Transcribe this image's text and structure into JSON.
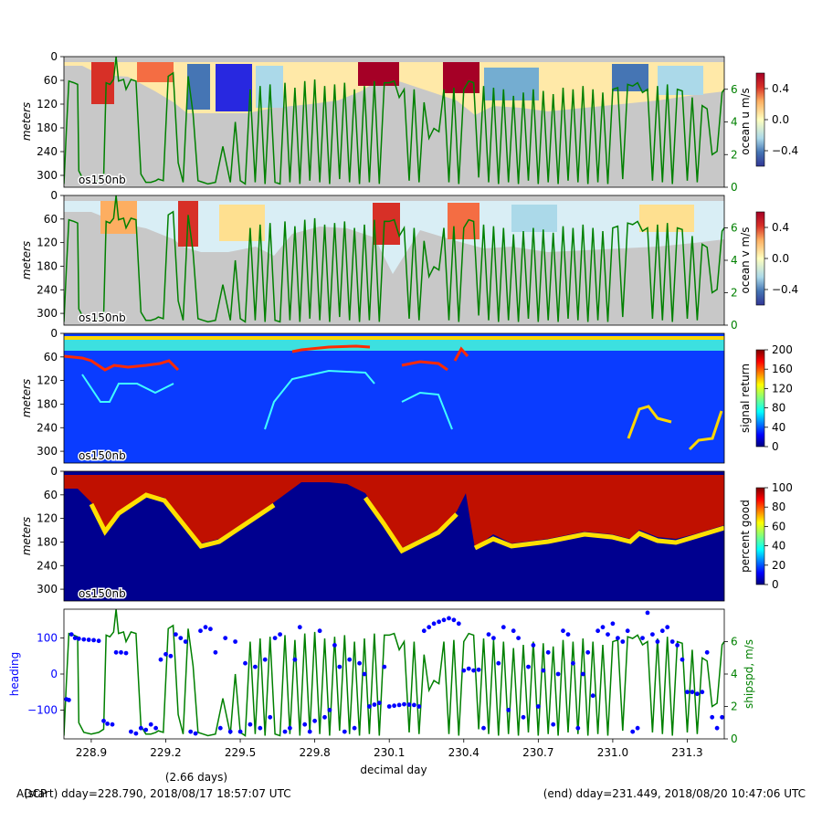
{
  "footer": {
    "left_label": "ADCP",
    "start": "(start) dday=228.790,  2018/08/17 18:57:07 UTC",
    "span": "(2.66 days)",
    "end": "(end) dday=231.449,  2018/08/20 10:47:06 UTC"
  },
  "colors": {
    "shipspd": "#008000",
    "heading": "#0000ff",
    "nodata": "#c8c8c8"
  },
  "chart_data": [
    {
      "type": "heatmap",
      "variable": "u",
      "panel_label": "os150nb",
      "ylabel": "meters",
      "yticks": [
        0,
        60,
        120,
        180,
        240,
        300
      ],
      "ylim": [
        330,
        0
      ],
      "xlim": [
        228.79,
        231.449
      ],
      "colorbar": {
        "label": "ocean u m/s",
        "ticks": [
          0.4,
          0.0,
          -0.4
        ],
        "ticklabels": [
          "0.4",
          "0.0",
          "−0.4"
        ],
        "range": [
          -0.6,
          0.6
        ],
        "colormap": "RdYlBu_r"
      },
      "right_axis": {
        "ticks": [
          0,
          2,
          4,
          6
        ],
        "ylim": [
          0,
          8
        ],
        "color": "#008000"
      },
      "overlay_series": "shipspd"
    },
    {
      "type": "heatmap",
      "variable": "v",
      "panel_label": "os150nb",
      "ylabel": "meters",
      "yticks": [
        0,
        60,
        120,
        180,
        240,
        300
      ],
      "ylim": [
        330,
        0
      ],
      "xlim": [
        228.79,
        231.449
      ],
      "colorbar": {
        "label": "ocean v m/s",
        "ticks": [
          0.4,
          0.0,
          -0.4
        ],
        "ticklabels": [
          "0.4",
          "0.0",
          "−0.4"
        ],
        "range": [
          -0.6,
          0.6
        ],
        "colormap": "RdYlBu_r"
      },
      "right_axis": {
        "ticks": [
          0,
          2,
          4,
          6
        ],
        "ylim": [
          0,
          8
        ],
        "color": "#008000"
      },
      "overlay_series": "shipspd"
    },
    {
      "type": "heatmap",
      "variable": "amp",
      "panel_label": "os150nb",
      "ylabel": "meters",
      "yticks": [
        0,
        60,
        120,
        180,
        240,
        300
      ],
      "ylim": [
        330,
        0
      ],
      "xlim": [
        228.79,
        231.449
      ],
      "colorbar": {
        "label": "signal return",
        "ticks": [
          200,
          160,
          120,
          80,
          40,
          0
        ],
        "ticklabels": [
          "200",
          "160",
          "120",
          "80",
          "40",
          "0"
        ],
        "range": [
          0,
          200
        ],
        "colormap": "jet"
      }
    },
    {
      "type": "heatmap",
      "variable": "pg",
      "panel_label": "os150nb",
      "ylabel": "meters",
      "yticks": [
        0,
        60,
        120,
        180,
        240,
        300
      ],
      "ylim": [
        330,
        0
      ],
      "xlim": [
        228.79,
        231.449
      ],
      "colorbar": {
        "label": "percent good",
        "ticks": [
          100,
          80,
          60,
          40,
          20,
          0
        ],
        "ticklabels": [
          "100",
          "80",
          "60",
          "40",
          "20",
          "0"
        ],
        "range": [
          0,
          100
        ],
        "colormap": "jet"
      }
    },
    {
      "type": "line",
      "variable": "heading_shipspd",
      "xlabel": "decimal day",
      "ylabel_left": "heading",
      "ylabel_right": "shipspd, m/s",
      "xticks": [
        228.9,
        229.2,
        229.5,
        229.8,
        230.1,
        230.4,
        230.7,
        231.0,
        231.3
      ],
      "xlim": [
        228.79,
        231.449
      ],
      "left_axis": {
        "ticks": [
          100,
          0,
          -100
        ],
        "ticklabels": [
          "100",
          "0",
          "−100"
        ],
        "ylim": [
          -180,
          180
        ],
        "color": "#0000ff"
      },
      "right_axis": {
        "ticks": [
          0,
          2,
          4,
          6
        ],
        "ylim": [
          0,
          8
        ],
        "color": "#008000"
      }
    }
  ],
  "series": {
    "shipspd": {
      "x": [
        228.79,
        228.8,
        228.81,
        228.83,
        228.845,
        228.85,
        228.87,
        228.9,
        228.93,
        228.95,
        228.96,
        228.975,
        228.99,
        229.0,
        229.005,
        229.01,
        229.03,
        229.04,
        229.06,
        229.08,
        229.1,
        229.12,
        229.14,
        229.16,
        229.17,
        229.19,
        229.21,
        229.23,
        229.25,
        229.27,
        229.29,
        229.31,
        229.33,
        229.35,
        229.37,
        229.4,
        229.43,
        229.46,
        229.48,
        229.5,
        229.52,
        229.54,
        229.56,
        229.58,
        229.6,
        229.62,
        229.64,
        229.66,
        229.68,
        229.7,
        229.72,
        229.74,
        229.76,
        229.78,
        229.8,
        229.82,
        229.84,
        229.86,
        229.88,
        229.9,
        229.92,
        229.94,
        229.96,
        229.98,
        230.0,
        230.02,
        230.04,
        230.06,
        230.08,
        230.1,
        230.12,
        230.14,
        230.16,
        230.18,
        230.2,
        230.22,
        230.24,
        230.26,
        230.28,
        230.3,
        230.32,
        230.34,
        230.36,
        230.38,
        230.4,
        230.42,
        230.44,
        230.46,
        230.48,
        230.5,
        230.52,
        230.54,
        230.56,
        230.58,
        230.6,
        230.62,
        230.64,
        230.66,
        230.68,
        230.7,
        230.72,
        230.74,
        230.76,
        230.78,
        230.8,
        230.82,
        230.84,
        230.86,
        230.88,
        230.9,
        230.92,
        230.94,
        230.96,
        230.98,
        231.0,
        231.02,
        231.04,
        231.06,
        231.08,
        231.1,
        231.12,
        231.14,
        231.16,
        231.18,
        231.2,
        231.22,
        231.24,
        231.26,
        231.28,
        231.3,
        231.32,
        231.34,
        231.36,
        231.38,
        231.4,
        231.42,
        231.44,
        231.449
      ],
      "y": [
        0.2,
        3.5,
        6.5,
        6.4,
        6.3,
        1.0,
        0.4,
        0.3,
        0.4,
        0.6,
        6.4,
        6.3,
        6.6,
        8.0,
        7.2,
        6.5,
        6.6,
        6.0,
        6.6,
        6.5,
        0.8,
        0.3,
        0.3,
        0.4,
        0.5,
        0.4,
        6.8,
        7.0,
        1.5,
        0.3,
        6.8,
        4.5,
        0.4,
        0.3,
        0.2,
        0.3,
        2.5,
        0.3,
        4.0,
        0.4,
        0.2,
        6.0,
        0.3,
        6.2,
        0.2,
        6.3,
        0.3,
        0.2,
        6.4,
        0.3,
        6.1,
        0.2,
        6.5,
        0.4,
        6.6,
        0.3,
        6.2,
        0.2,
        6.3,
        0.5,
        6.4,
        0.3,
        6.0,
        0.2,
        6.2,
        0.3,
        6.5,
        0.2,
        6.4,
        6.4,
        6.5,
        5.5,
        6.0,
        0.4,
        6.0,
        0.3,
        5.2,
        3.0,
        3.6,
        3.4,
        6.0,
        0.3,
        6.1,
        0.2,
        6.0,
        6.5,
        6.4,
        0.6,
        6.2,
        0.3,
        6.1,
        0.2,
        6.0,
        0.3,
        5.6,
        0.2,
        5.8,
        0.4,
        6.0,
        0.2,
        5.9,
        0.3,
        5.7,
        0.2,
        6.1,
        0.4,
        6.0,
        0.3,
        6.2,
        0.2,
        6.0,
        0.3,
        5.8,
        0.2,
        6.0,
        6.1,
        0.5,
        6.3,
        6.2,
        6.4,
        5.8,
        6.0,
        0.4,
        6.2,
        0.3,
        6.3,
        0.2,
        6.0,
        5.9,
        0.4,
        5.5,
        0.3,
        5.0,
        4.8,
        2.0,
        2.2,
        5.8,
        6.0
      ]
    },
    "heading": {
      "x": [
        228.8,
        228.81,
        228.82,
        228.835,
        228.85,
        228.87,
        228.89,
        228.91,
        228.93,
        228.95,
        228.965,
        228.985,
        229.0,
        229.02,
        229.04,
        229.06,
        229.08,
        229.1,
        229.12,
        229.14,
        229.16,
        229.18,
        229.2,
        229.22,
        229.24,
        229.26,
        229.28,
        229.3,
        229.32,
        229.34,
        229.36,
        229.38,
        229.4,
        229.42,
        229.44,
        229.46,
        229.48,
        229.5,
        229.52,
        229.54,
        229.56,
        229.58,
        229.6,
        229.62,
        229.64,
        229.66,
        229.68,
        229.7,
        229.72,
        229.74,
        229.76,
        229.78,
        229.8,
        229.82,
        229.84,
        229.86,
        229.88,
        229.9,
        229.92,
        229.94,
        229.96,
        229.98,
        230.0,
        230.02,
        230.04,
        230.06,
        230.08,
        230.1,
        230.12,
        230.14,
        230.16,
        230.18,
        230.2,
        230.22,
        230.24,
        230.26,
        230.28,
        230.3,
        230.32,
        230.34,
        230.36,
        230.38,
        230.4,
        230.42,
        230.44,
        230.46,
        230.48,
        230.5,
        230.52,
        230.54,
        230.56,
        230.58,
        230.6,
        230.62,
        230.64,
        230.66,
        230.68,
        230.7,
        230.72,
        230.74,
        230.76,
        230.78,
        230.8,
        230.82,
        230.84,
        230.86,
        230.88,
        230.9,
        230.92,
        230.94,
        230.96,
        230.98,
        231.0,
        231.02,
        231.04,
        231.06,
        231.08,
        231.1,
        231.12,
        231.14,
        231.16,
        231.18,
        231.2,
        231.22,
        231.24,
        231.26,
        231.28,
        231.3,
        231.32,
        231.34,
        231.36,
        231.38,
        231.4,
        231.42,
        231.44
      ],
      "y": [
        -70,
        -72,
        110,
        100,
        98,
        96,
        95,
        94,
        92,
        -130,
        -138,
        -140,
        60,
        60,
        58,
        -160,
        -165,
        -150,
        -155,
        -140,
        -150,
        40,
        55,
        50,
        110,
        100,
        90,
        -160,
        -165,
        120,
        130,
        125,
        60,
        -150,
        100,
        -160,
        90,
        -160,
        30,
        -140,
        20,
        -150,
        40,
        -120,
        100,
        110,
        -160,
        -150,
        40,
        130,
        -140,
        -160,
        -130,
        120,
        -120,
        -100,
        80,
        20,
        -160,
        40,
        -150,
        30,
        0,
        -90,
        -85,
        -80,
        20,
        -90,
        -88,
        -86,
        -84,
        -85,
        -86,
        -90,
        120,
        130,
        140,
        145,
        150,
        155,
        150,
        140,
        10,
        15,
        10,
        12,
        -150,
        110,
        100,
        30,
        130,
        -100,
        120,
        100,
        -120,
        20,
        80,
        -90,
        10,
        60,
        -140,
        0,
        120,
        110,
        30,
        -150,
        0,
        60,
        -60,
        120,
        130,
        110,
        140,
        100,
        90,
        120,
        -160,
        -150,
        100,
        170,
        110,
        90,
        120,
        130,
        90,
        80,
        40,
        -50,
        -50,
        -55,
        -50,
        60,
        -120,
        -150,
        -120
      ]
    }
  }
}
